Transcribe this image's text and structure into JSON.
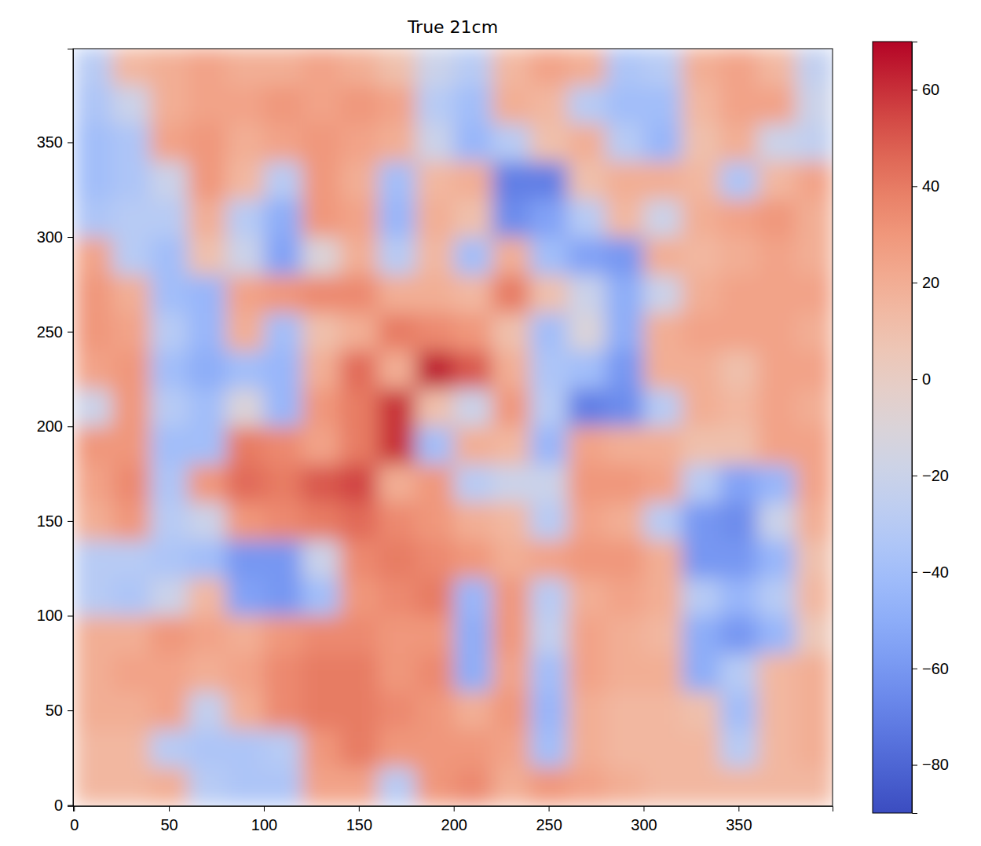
{
  "chart_data": {
    "type": "heatmap",
    "title": "True 21cm",
    "x": [
      10,
      30,
      50,
      70,
      90,
      110,
      130,
      150,
      170,
      190,
      210,
      230,
      250,
      270,
      290,
      310,
      330,
      350,
      370,
      390
    ],
    "y": [
      10,
      30,
      50,
      70,
      90,
      110,
      130,
      150,
      170,
      190,
      210,
      230,
      250,
      270,
      290,
      310,
      330,
      350,
      370,
      390
    ],
    "z": [
      [
        15,
        15,
        20,
        -30,
        -35,
        -35,
        25,
        25,
        -30,
        30,
        35,
        20,
        30,
        25,
        20,
        15,
        15,
        15,
        15,
        15
      ],
      [
        15,
        15,
        -30,
        -35,
        -35,
        -30,
        30,
        40,
        30,
        30,
        30,
        25,
        -40,
        20,
        15,
        15,
        15,
        -30,
        15,
        20
      ],
      [
        20,
        20,
        25,
        -25,
        20,
        35,
        40,
        40,
        35,
        30,
        20,
        30,
        -45,
        20,
        15,
        15,
        10,
        -40,
        15,
        20
      ],
      [
        20,
        25,
        25,
        20,
        25,
        35,
        40,
        40,
        30,
        35,
        -50,
        25,
        -40,
        25,
        20,
        20,
        -50,
        -30,
        15,
        20
      ],
      [
        20,
        20,
        30,
        25,
        20,
        30,
        35,
        35,
        30,
        30,
        -50,
        30,
        -25,
        25,
        20,
        15,
        -50,
        -60,
        -45,
        5
      ],
      [
        -30,
        -35,
        -20,
        15,
        -55,
        -60,
        -40,
        30,
        35,
        40,
        -45,
        30,
        -30,
        20,
        25,
        20,
        -30,
        -45,
        -30,
        15
      ],
      [
        -30,
        -30,
        -35,
        -40,
        -60,
        -60,
        -20,
        35,
        40,
        35,
        30,
        20,
        25,
        30,
        30,
        20,
        -60,
        -60,
        -45,
        10
      ],
      [
        20,
        30,
        -30,
        -20,
        30,
        35,
        40,
        45,
        35,
        30,
        20,
        15,
        -30,
        25,
        20,
        -30,
        -60,
        -65,
        -20,
        20
      ],
      [
        25,
        35,
        -35,
        30,
        45,
        40,
        50,
        55,
        20,
        30,
        -30,
        -20,
        -20,
        30,
        30,
        25,
        -30,
        -55,
        -45,
        25
      ],
      [
        30,
        30,
        -40,
        -40,
        40,
        35,
        25,
        40,
        60,
        -40,
        20,
        15,
        -45,
        25,
        20,
        20,
        10,
        10,
        25,
        25
      ],
      [
        -20,
        30,
        -30,
        -40,
        -10,
        -45,
        30,
        40,
        60,
        10,
        -20,
        30,
        -30,
        -70,
        -65,
        -30,
        20,
        15,
        25,
        20
      ],
      [
        25,
        30,
        -40,
        -50,
        -40,
        -45,
        20,
        45,
        20,
        65,
        50,
        20,
        -35,
        -40,
        -60,
        20,
        20,
        10,
        25,
        25
      ],
      [
        30,
        25,
        -30,
        -45,
        20,
        -40,
        10,
        20,
        40,
        35,
        30,
        10,
        -40,
        -10,
        -50,
        20,
        25,
        25,
        25,
        20
      ],
      [
        30,
        20,
        -40,
        -45,
        25,
        30,
        35,
        35,
        20,
        20,
        15,
        40,
        10,
        -20,
        -50,
        -20,
        20,
        25,
        25,
        25
      ],
      [
        25,
        -30,
        -40,
        10,
        -20,
        -55,
        -10,
        20,
        -30,
        15,
        -40,
        20,
        -40,
        -55,
        -60,
        20,
        15,
        20,
        25,
        20
      ],
      [
        -35,
        -30,
        -30,
        20,
        -30,
        -50,
        30,
        25,
        -45,
        20,
        10,
        -65,
        -55,
        -30,
        15,
        -20,
        20,
        25,
        30,
        20
      ],
      [
        -40,
        -35,
        -20,
        30,
        15,
        -30,
        30,
        20,
        -40,
        15,
        20,
        -70,
        -70,
        10,
        20,
        20,
        15,
        -35,
        15,
        25
      ],
      [
        -40,
        -35,
        25,
        30,
        20,
        25,
        30,
        25,
        20,
        -20,
        -45,
        -30,
        10,
        20,
        -30,
        -45,
        10,
        20,
        -20,
        -25
      ],
      [
        -35,
        -20,
        20,
        25,
        25,
        30,
        25,
        30,
        25,
        -30,
        -40,
        20,
        15,
        -30,
        -40,
        -40,
        15,
        25,
        25,
        -20
      ],
      [
        -30,
        15,
        20,
        25,
        20,
        20,
        25,
        20,
        10,
        -20,
        -30,
        15,
        25,
        20,
        -35,
        -30,
        20,
        25,
        15,
        -25
      ]
    ],
    "xlim": [
      -0.5,
      399.5
    ],
    "ylim": [
      -0.5,
      399.5
    ],
    "xticks": [
      0,
      50,
      100,
      150,
      200,
      250,
      300,
      350
    ],
    "yticks": [
      0,
      50,
      100,
      150,
      200,
      250,
      300,
      350
    ],
    "colorbar_range": [
      -90,
      70
    ],
    "colorbar_ticks": [
      {
        "value": -80,
        "label": "−80"
      },
      {
        "value": -60,
        "label": "−60"
      },
      {
        "value": -40,
        "label": "−40"
      },
      {
        "value": -20,
        "label": "−20"
      },
      0,
      20,
      40,
      60
    ]
  }
}
